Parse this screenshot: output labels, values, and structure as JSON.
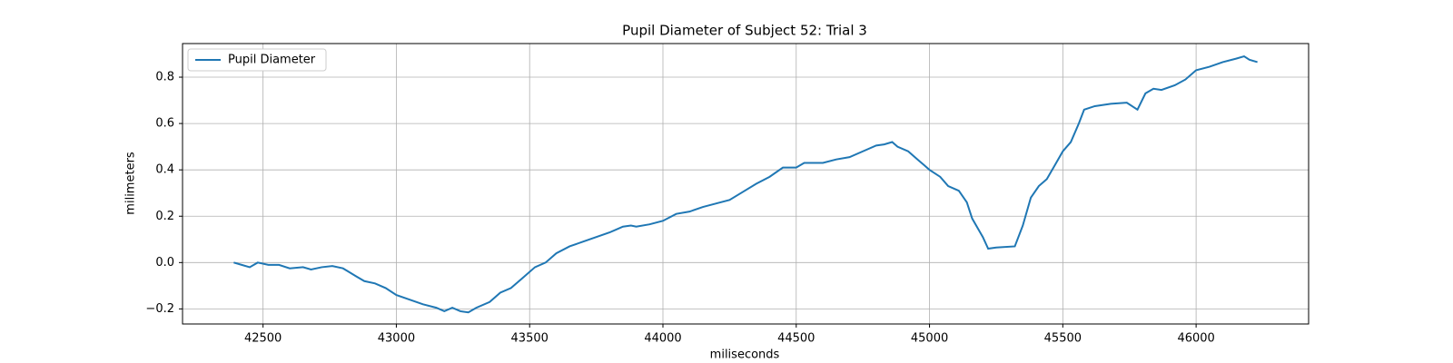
{
  "chart_data": {
    "type": "line",
    "title": "Pupil Diameter of Subject 52: Trial 3",
    "xlabel": "miliseconds",
    "ylabel": "milimeters",
    "x": [
      42390,
      42420,
      42450,
      42480,
      42520,
      42560,
      42600,
      42650,
      42680,
      42720,
      42760,
      42800,
      42850,
      42880,
      42920,
      42960,
      43000,
      43050,
      43100,
      43150,
      43180,
      43210,
      43240,
      43270,
      43300,
      43350,
      43390,
      43430,
      43470,
      43520,
      43560,
      43600,
      43650,
      43700,
      43750,
      43800,
      43850,
      43880,
      43900,
      43950,
      44000,
      44050,
      44100,
      44150,
      44200,
      44250,
      44300,
      44350,
      44400,
      44450,
      44500,
      44530,
      44600,
      44650,
      44700,
      44750,
      44800,
      44830,
      44860,
      44880,
      44920,
      44960,
      45000,
      45040,
      45070,
      45110,
      45140,
      45160,
      45200,
      45220,
      45250,
      45320,
      45350,
      45380,
      45410,
      45440,
      45470,
      45500,
      45530,
      45560,
      45580,
      45620,
      45680,
      45740,
      45780,
      45810,
      45840,
      45870,
      45920,
      45960,
      46000,
      46050,
      46100,
      46150,
      46180,
      46200,
      46230
    ],
    "series": [
      {
        "name": "Pupil Diameter",
        "color": "#1f77b4",
        "values": [
          0.0,
          -0.01,
          -0.02,
          0.0,
          -0.01,
          -0.01,
          -0.025,
          -0.02,
          -0.03,
          -0.02,
          -0.015,
          -0.025,
          -0.06,
          -0.08,
          -0.09,
          -0.11,
          -0.14,
          -0.16,
          -0.18,
          -0.195,
          -0.21,
          -0.195,
          -0.21,
          -0.215,
          -0.195,
          -0.17,
          -0.13,
          -0.11,
          -0.07,
          -0.02,
          0.0,
          0.04,
          0.07,
          0.09,
          0.11,
          0.13,
          0.155,
          0.16,
          0.155,
          0.165,
          0.18,
          0.21,
          0.22,
          0.24,
          0.255,
          0.27,
          0.305,
          0.34,
          0.37,
          0.41,
          0.41,
          0.43,
          0.43,
          0.445,
          0.455,
          0.48,
          0.505,
          0.51,
          0.52,
          0.5,
          0.48,
          0.44,
          0.4,
          0.37,
          0.33,
          0.31,
          0.26,
          0.19,
          0.11,
          0.06,
          0.065,
          0.07,
          0.16,
          0.28,
          0.33,
          0.36,
          0.42,
          0.48,
          0.52,
          0.6,
          0.66,
          0.675,
          0.685,
          0.69,
          0.66,
          0.73,
          0.75,
          0.745,
          0.765,
          0.79,
          0.83,
          0.845,
          0.865,
          0.88,
          0.89,
          0.875,
          0.865
        ]
      }
    ],
    "xlim": [
      42198,
      46422
    ],
    "ylim": [
      -0.265,
      0.945
    ],
    "xticks": [
      42500,
      43000,
      43500,
      44000,
      44500,
      45000,
      45500,
      46000
    ],
    "yticks": [
      {
        "value": -0.2,
        "label": "−0.2"
      },
      {
        "value": 0.0,
        "label": "0.0"
      },
      {
        "value": 0.2,
        "label": "0.2"
      },
      {
        "value": 0.4,
        "label": "0.4"
      },
      {
        "value": 0.6,
        "label": "0.6"
      },
      {
        "value": 0.8,
        "label": "0.8"
      }
    ],
    "grid": true,
    "legend": "upper-left"
  }
}
